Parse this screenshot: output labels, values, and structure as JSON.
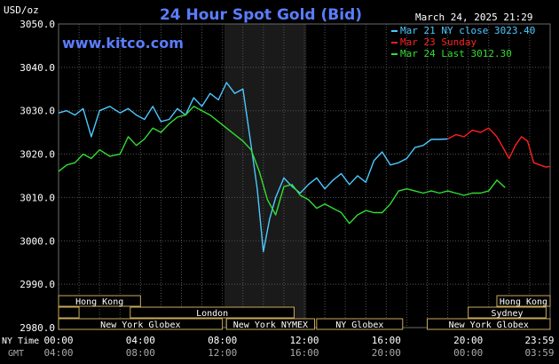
{
  "chart_data": {
    "type": "line",
    "title": "24 Hour Spot Gold (Bid)",
    "source": "www.kitco.com",
    "timestamp": "March 24, 2025 21:29",
    "ylabel": "USD/oz",
    "ylim": [
      2980,
      3050
    ],
    "y_ticks": [
      "3050.0",
      "3040.0",
      "3030.0",
      "3020.0",
      "3010.0",
      "3000.0",
      "2990.0",
      "2980.0"
    ],
    "x_range_hours": [
      0,
      24
    ],
    "x_ticks_ny": [
      "00:00",
      "04:00",
      "08:00",
      "12:00",
      "16:00",
      "20:00",
      "23:59"
    ],
    "x_ticks_gmt": [
      "04:00",
      "08:00",
      "12:00",
      "16:00",
      "20:00",
      "00:00",
      "03:59"
    ],
    "x_label_ny": "NY Time",
    "x_label_gmt": "GMT",
    "grid": true,
    "shaded_session": [
      8.1,
      12.1
    ],
    "legend": [
      {
        "label": "Mar 21 NY close 3023.40",
        "color": "#4cc8ff"
      },
      {
        "label": "Mar 23 Sunday",
        "color": "#ff2020"
      },
      {
        "label": "Mar 24 Last 3012.30",
        "color": "#33dd33"
      }
    ],
    "series": [
      {
        "name": "Mar 21 NY close 3023.40",
        "color": "#4cc8ff",
        "x": [
          0,
          0.4,
          0.8,
          1.2,
          1.6,
          2.0,
          2.5,
          3.0,
          3.4,
          3.8,
          4.2,
          4.6,
          5.0,
          5.4,
          5.8,
          6.2,
          6.6,
          7.0,
          7.4,
          7.8,
          8.2,
          8.6,
          9.0,
          9.4,
          9.7,
          10.0,
          10.3,
          10.6,
          11.0,
          11.4,
          11.8,
          12.2,
          12.6,
          13.0,
          13.4,
          13.8,
          14.2,
          14.6,
          15.0,
          15.4,
          15.8,
          16.2,
          16.6,
          17.0,
          17.4,
          17.8,
          18.2,
          18.6,
          19.0
        ],
        "y": [
          3029.5,
          3030.0,
          3029.0,
          3030.5,
          3024.0,
          3030.0,
          3031.0,
          3029.5,
          3030.5,
          3029.0,
          3028.0,
          3031.0,
          3027.5,
          3028.0,
          3030.5,
          3029.0,
          3033.0,
          3031.0,
          3034.0,
          3032.5,
          3036.5,
          3034.0,
          3035.0,
          3022.0,
          3012.0,
          2997.5,
          3005.0,
          3010.0,
          3014.5,
          3012.5,
          3011.0,
          3013.0,
          3014.5,
          3012.0,
          3014.0,
          3015.5,
          3013.0,
          3015.0,
          3013.5,
          3018.5,
          3020.5,
          3017.5,
          3018.0,
          3019.0,
          3021.5,
          3022.0,
          3023.4,
          3023.4,
          3023.5
        ]
      },
      {
        "name": "Mar 23 Sunday",
        "color": "#ff2020",
        "x": [
          19.0,
          19.4,
          19.8,
          20.2,
          20.6,
          21.0,
          21.4,
          21.7,
          22.0,
          22.3,
          22.6,
          22.9,
          23.2,
          23.5,
          23.8,
          24.0
        ],
        "y": [
          3023.5,
          3024.5,
          3024.0,
          3025.5,
          3025.0,
          3026.0,
          3024.0,
          3021.5,
          3019.0,
          3022.0,
          3024.0,
          3023.0,
          3018.0,
          3017.5,
          3017.0,
          3017.2
        ]
      },
      {
        "name": "Mar 24 Last 3012.30",
        "color": "#33dd33",
        "x": [
          0,
          0.4,
          0.8,
          1.2,
          1.6,
          2.0,
          2.5,
          3.0,
          3.4,
          3.8,
          4.2,
          4.6,
          5.0,
          5.4,
          5.8,
          6.2,
          6.6,
          7.0,
          7.4,
          7.8,
          8.2,
          8.6,
          9.0,
          9.4,
          9.8,
          10.2,
          10.6,
          11.0,
          11.4,
          11.8,
          12.2,
          12.6,
          13.0,
          13.4,
          13.8,
          14.2,
          14.6,
          15.0,
          15.4,
          15.8,
          16.2,
          16.6,
          17.0,
          17.4,
          17.8,
          18.2,
          18.6,
          19.0,
          19.4,
          19.8,
          20.2,
          20.6,
          21.0,
          21.4,
          21.8
        ],
        "y": [
          3016.0,
          3017.5,
          3018.0,
          3020.0,
          3019.0,
          3021.0,
          3019.5,
          3020.0,
          3024.0,
          3022.0,
          3023.5,
          3026.0,
          3025.0,
          3027.0,
          3028.5,
          3029.0,
          3031.0,
          3030.0,
          3029.0,
          3027.5,
          3026.0,
          3024.5,
          3023.0,
          3021.0,
          3016.0,
          3009.5,
          3006.0,
          3012.5,
          3013.0,
          3010.5,
          3009.5,
          3007.5,
          3008.5,
          3007.5,
          3006.5,
          3004.0,
          3006.0,
          3007.0,
          3006.5,
          3006.5,
          3008.5,
          3011.5,
          3012.0,
          3011.5,
          3011.0,
          3011.5,
          3011.0,
          3011.5,
          3011.0,
          3010.5,
          3011.0,
          3011.0,
          3011.5,
          3014.0,
          3012.3
        ]
      }
    ],
    "sessions": [
      {
        "label": "Hong Kong",
        "start": 0.0,
        "end": 4.0,
        "row": 0
      },
      {
        "label": "Hong Kong",
        "start": 21.4,
        "end": 24.0,
        "row": 0
      },
      {
        "label": "",
        "start": 0.0,
        "end": 1.0,
        "row": 1
      },
      {
        "label": "London",
        "start": 3.5,
        "end": 11.5,
        "row": 1
      },
      {
        "label": "Sydney",
        "start": 20.0,
        "end": 23.8,
        "row": 1
      },
      {
        "label": "New York Globex",
        "start": 0.0,
        "end": 8.0,
        "row": 2
      },
      {
        "label": "New York NYMEX",
        "start": 8.2,
        "end": 12.5,
        "row": 2
      },
      {
        "label": "NY Globex",
        "start": 12.6,
        "end": 16.8,
        "row": 2
      },
      {
        "label": "New York Globex",
        "start": 18.0,
        "end": 24.0,
        "row": 2
      }
    ]
  }
}
